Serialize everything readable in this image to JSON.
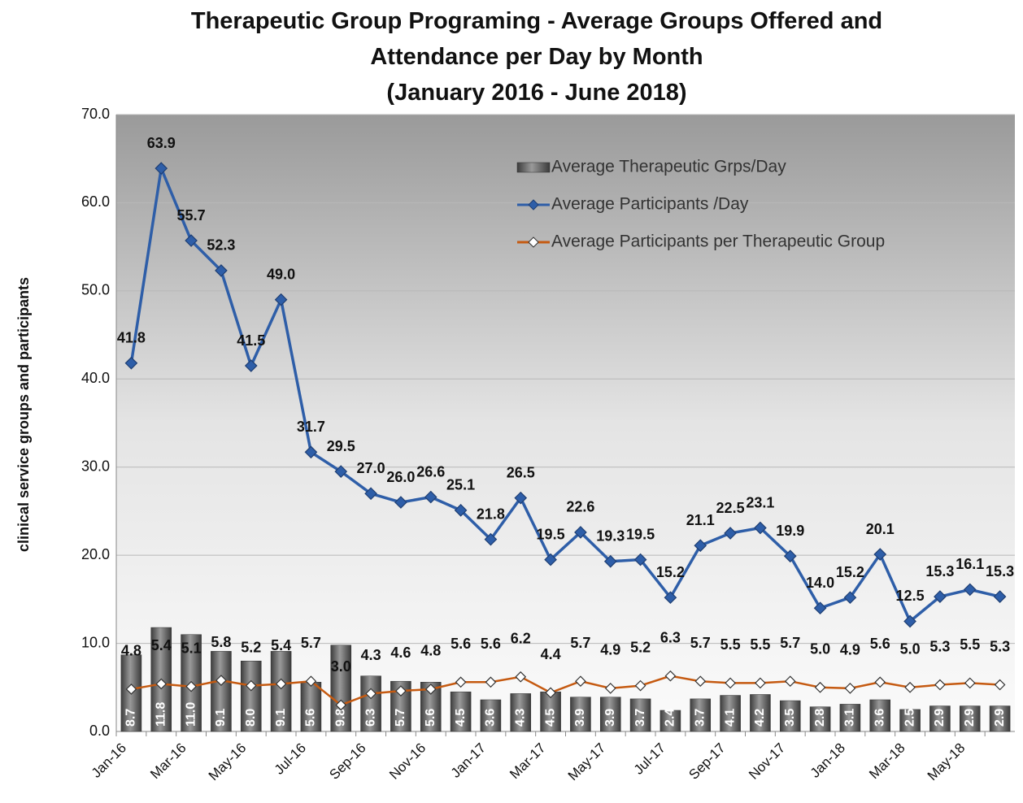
{
  "chart_data": {
    "type": "combo",
    "title": "Therapeutic Group Programing - Average Groups Offered and Attendance per Day by Month",
    "subtitle": "(January 2016 - June 2018)",
    "y_label": "clinical service groups and participants",
    "categories": [
      "Jan-16",
      null,
      "Mar-16",
      null,
      "May-16",
      null,
      "Jul-16",
      null,
      "Sep-16",
      null,
      "Nov-16",
      null,
      "Jan-17",
      null,
      "Mar-17",
      null,
      "May-17",
      null,
      "Jul-17",
      null,
      "Sep-17",
      null,
      "Nov-17",
      null,
      "Jan-18",
      null,
      "Mar-18",
      null,
      "May-18",
      null
    ],
    "ylim": [
      0,
      70
    ],
    "yticks": [
      {
        "value": 0,
        "label": "0.0"
      },
      {
        "value": 10,
        "label": "10.0"
      },
      {
        "value": 20,
        "label": "20.0"
      },
      {
        "value": 30,
        "label": "30.0"
      },
      {
        "value": 40,
        "label": "40.0"
      },
      {
        "value": 50,
        "label": "50.0"
      },
      {
        "value": 60,
        "label": "60.0"
      },
      {
        "value": 70,
        "label": "70.0"
      }
    ],
    "grid": true,
    "legend": "top-right",
    "series": [
      {
        "name": "Average Therapeutic Grps/Day",
        "type": "bar",
        "color": "#6b6b6b",
        "values": [
          8.7,
          11.8,
          11.0,
          9.1,
          8.0,
          9.1,
          5.6,
          9.8,
          6.3,
          5.7,
          5.6,
          4.5,
          3.6,
          4.3,
          4.5,
          3.9,
          3.9,
          3.7,
          2.4,
          3.7,
          4.1,
          4.2,
          3.5,
          2.8,
          3.1,
          3.6,
          2.5,
          2.9,
          2.9,
          2.9
        ],
        "value_labels": [
          "8.7",
          "11.8",
          "11.0",
          "9.1",
          "8.0",
          "9.1",
          "5.6",
          "9.8",
          "6.3",
          "5.7",
          "5.6",
          "4.5",
          "3.6",
          "4.3",
          "4.5",
          "3.9",
          "3.9",
          "3.7",
          "2.4",
          "3.7",
          "4.1",
          "4.2",
          "3.5",
          "2.8",
          "3.1",
          "3.6",
          "2.5",
          "2.9",
          "2.9",
          "2.9"
        ]
      },
      {
        "name": "Average Participants /Day",
        "type": "line",
        "color": "#2e5ea8",
        "marker": "diamond",
        "values": [
          41.8,
          63.9,
          55.7,
          52.3,
          41.5,
          49.0,
          31.7,
          29.5,
          27.0,
          26.0,
          26.6,
          25.1,
          21.8,
          26.5,
          19.5,
          22.6,
          19.3,
          19.5,
          15.2,
          21.1,
          22.5,
          23.1,
          19.9,
          14.0,
          15.2,
          20.1,
          12.5,
          15.3,
          16.1,
          15.3
        ],
        "value_labels": [
          "41.8",
          "63.9",
          "55.7",
          "52.3",
          "41.5",
          "49.0",
          "31.7",
          "29.5",
          "27.0",
          "26.0",
          "26.6",
          "25.1",
          "21.8",
          "26.5",
          "19.5",
          "22.6",
          "19.3",
          "19.5",
          "15.2",
          "21.1",
          "22.5",
          "23.1",
          "19.9",
          "14.0",
          "15.2",
          "20.1",
          "12.5",
          "15.3",
          "16.1",
          "15.3"
        ]
      },
      {
        "name": "Average Participants per Therapeutic Group",
        "type": "line",
        "color": "#c55a11",
        "marker": "hollow-diamond",
        "values": [
          4.8,
          5.4,
          5.1,
          5.8,
          5.2,
          5.4,
          5.7,
          3.0,
          4.3,
          4.6,
          4.8,
          5.6,
          5.6,
          6.2,
          4.4,
          5.7,
          4.9,
          5.2,
          6.3,
          5.7,
          5.5,
          5.5,
          5.7,
          5.0,
          4.9,
          5.6,
          5.0,
          5.3,
          5.5,
          5.3
        ],
        "value_labels": [
          "4.8",
          "5.4",
          "5.1",
          "5.8",
          "5.2",
          "5.4",
          "5.7",
          "3.0",
          "4.3",
          "4.6",
          "4.8",
          "5.6",
          "5.6",
          "6.2",
          "4.4",
          "5.7",
          "4.9",
          "5.2",
          "6.3",
          "5.7",
          "5.5",
          "5.5",
          "5.7",
          "5.0",
          "4.9",
          "5.6",
          "5.0",
          "5.3",
          "5.5",
          "5.3"
        ]
      }
    ]
  }
}
